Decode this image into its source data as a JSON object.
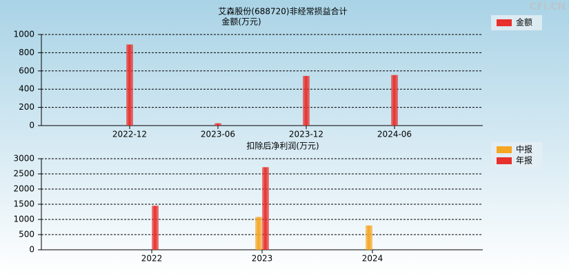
{
  "watermark": "CFi.CN",
  "chart_data": [
    {
      "type": "bar",
      "title": "艾森股份(688720)非经常损益合计",
      "subtitle": "金额(万元)",
      "categories": [
        "2022-12",
        "2023-06",
        "2023-12",
        "2024-06"
      ],
      "series": [
        {
          "name": "金额",
          "color": "#e8302c",
          "values": [
            890,
            25,
            545,
            555
          ]
        }
      ],
      "ylim": [
        0,
        1000
      ],
      "yticks": [
        0,
        200,
        400,
        600,
        800,
        1000
      ],
      "grid": true
    },
    {
      "type": "bar",
      "title": "扣除后净利润(万元)",
      "categories": [
        "2022",
        "2023",
        "2024"
      ],
      "series": [
        {
          "name": "中报",
          "color": "#f5a623",
          "values": [
            null,
            1080,
            800
          ]
        },
        {
          "name": "年报",
          "color": "#e8302c",
          "values": [
            1450,
            2720,
            null
          ]
        }
      ],
      "ylim": [
        0,
        3000
      ],
      "yticks": [
        0,
        500,
        1000,
        1500,
        2000,
        2500,
        3000
      ],
      "grid": true
    }
  ]
}
